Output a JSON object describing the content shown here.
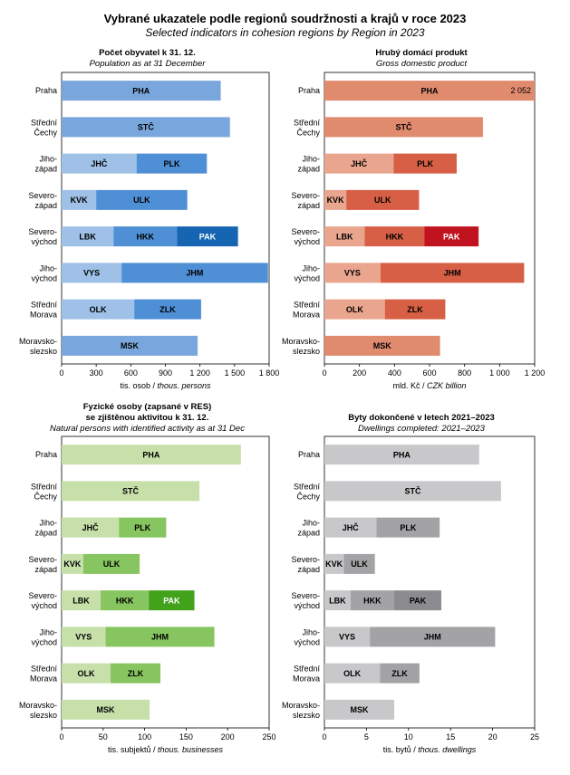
{
  "title": "Vybrané ukazatele podle regionů soudržnosti a krajů v roce 2023",
  "subtitle": "Selected indicators in cohesion regions by Region in 2023",
  "regions": [
    [
      "Praha"
    ],
    [
      "Střední",
      "Čechy"
    ],
    [
      "Jiho-",
      "západ"
    ],
    [
      "Severo-",
      "západ"
    ],
    [
      "Severo-",
      "východ"
    ],
    [
      "Jiho-",
      "východ"
    ],
    [
      "Střední",
      "Morava"
    ],
    [
      "Moravsko-",
      "slezsko"
    ]
  ],
  "chart_data": [
    {
      "type": "bar",
      "orientation": "horizontal",
      "stacked": true,
      "title": "Počet obyvatel k 31. 12.",
      "subtitle": "Population as at 31 December",
      "xlabel": "tis. osob",
      "xlabel_en": "thous. persons",
      "xlim": [
        0,
        1800
      ],
      "ticks": [
        "0",
        "300",
        "600",
        "900",
        "1 200",
        "1 500",
        "1 800"
      ],
      "tick_values": [
        0,
        300,
        600,
        900,
        1200,
        1500,
        1800
      ],
      "rows": [
        {
          "segments": [
            {
              "label": "PHA",
              "value": 1380,
              "color": "#79a6dc"
            }
          ]
        },
        {
          "segments": [
            {
              "label": "STČ",
              "value": 1460,
              "color": "#79a6dc"
            }
          ]
        },
        {
          "segments": [
            {
              "label": "JHČ",
              "value": 650,
              "color": "#9fc1e7"
            },
            {
              "label": "PLK",
              "value": 610,
              "color": "#4f8fd6"
            }
          ]
        },
        {
          "segments": [
            {
              "label": "KVK",
              "value": 300,
              "color": "#9fc1e7"
            },
            {
              "label": "ULK",
              "value": 790,
              "color": "#4f8fd6"
            }
          ]
        },
        {
          "segments": [
            {
              "label": "LBK",
              "value": 450,
              "color": "#9fc1e7"
            },
            {
              "label": "HKK",
              "value": 550,
              "color": "#4f8fd6"
            },
            {
              "label": "PAK",
              "value": 530,
              "color": "#1565b3"
            }
          ]
        },
        {
          "segments": [
            {
              "label": "VYS",
              "value": 520,
              "color": "#9fc1e7"
            },
            {
              "label": "JHM",
              "value": 1270,
              "color": "#4f8fd6"
            }
          ]
        },
        {
          "segments": [
            {
              "label": "OLK",
              "value": 630,
              "color": "#9fc1e7"
            },
            {
              "label": "ZLK",
              "value": 580,
              "color": "#4f8fd6"
            }
          ]
        },
        {
          "segments": [
            {
              "label": "MSK",
              "value": 1180,
              "color": "#79a6dc"
            }
          ]
        }
      ]
    },
    {
      "type": "bar",
      "orientation": "horizontal",
      "stacked": true,
      "title": "Hrubý domácí produkt",
      "subtitle": "Gross domestic product",
      "xlabel": "mld. Kč",
      "xlabel_en": "CZK billion",
      "xlim": [
        0,
        1200
      ],
      "ticks": [
        "0",
        "200",
        "400",
        "600",
        "800",
        "1 000",
        "1 200"
      ],
      "tick_values": [
        0,
        200,
        400,
        600,
        800,
        1000,
        1200
      ],
      "rows": [
        {
          "segments": [
            {
              "label": "PHA",
              "value": 2052,
              "color": "#e08a6e"
            }
          ],
          "value_label": "2 052"
        },
        {
          "segments": [
            {
              "label": "STČ",
              "value": 905,
              "color": "#e08a6e"
            }
          ]
        },
        {
          "segments": [
            {
              "label": "JHČ",
              "value": 395,
              "color": "#e9a58e"
            },
            {
              "label": "PLK",
              "value": 360,
              "color": "#d65f45"
            }
          ]
        },
        {
          "segments": [
            {
              "label": "KVK",
              "value": 125,
              "color": "#e9a58e"
            },
            {
              "label": "ULK",
              "value": 415,
              "color": "#d65f45"
            }
          ]
        },
        {
          "segments": [
            {
              "label": "LBK",
              "value": 230,
              "color": "#e9a58e"
            },
            {
              "label": "HKK",
              "value": 340,
              "color": "#d65f45"
            },
            {
              "label": "PAK",
              "value": 310,
              "color": "#c1121f"
            }
          ]
        },
        {
          "segments": [
            {
              "label": "VYS",
              "value": 320,
              "color": "#e9a58e"
            },
            {
              "label": "JHM",
              "value": 820,
              "color": "#d65f45"
            }
          ]
        },
        {
          "segments": [
            {
              "label": "OLK",
              "value": 345,
              "color": "#e9a58e"
            },
            {
              "label": "ZLK",
              "value": 345,
              "color": "#d65f45"
            }
          ]
        },
        {
          "segments": [
            {
              "label": "MSK",
              "value": 660,
              "color": "#e08a6e"
            }
          ]
        }
      ]
    },
    {
      "type": "bar",
      "orientation": "horizontal",
      "stacked": true,
      "title": "Fyzické osoby (zapsané v RES) se zjištěnou aktivitou k 31. 12.",
      "title_lines": [
        "Fyzické osoby (zapsané v RES)",
        "se zjištěnou aktivitou k 31. 12."
      ],
      "subtitle": "Natural persons with identified activity as at 31 Dec",
      "xlabel": "tis. subjektů",
      "xlabel_en": "thous. businesses",
      "xlim": [
        0,
        250
      ],
      "ticks": [
        "0",
        "50",
        "100",
        "150",
        "200",
        "250"
      ],
      "tick_values": [
        0,
        50,
        100,
        150,
        200,
        250
      ],
      "rows": [
        {
          "segments": [
            {
              "label": "PHA",
              "value": 216,
              "color": "#c7e0aa"
            }
          ]
        },
        {
          "segments": [
            {
              "label": "STČ",
              "value": 166,
              "color": "#c7e0aa"
            }
          ]
        },
        {
          "segments": [
            {
              "label": "JHČ",
              "value": 69,
              "color": "#c7e0aa"
            },
            {
              "label": "PLK",
              "value": 57,
              "color": "#86c55f"
            }
          ]
        },
        {
          "segments": [
            {
              "label": "KVK",
              "value": 26,
              "color": "#c7e0aa"
            },
            {
              "label": "ULK",
              "value": 68,
              "color": "#86c55f"
            }
          ]
        },
        {
          "segments": [
            {
              "label": "LBK",
              "value": 47,
              "color": "#c7e0aa"
            },
            {
              "label": "HKK",
              "value": 58,
              "color": "#86c55f"
            },
            {
              "label": "PAK",
              "value": 55,
              "color": "#43a21b"
            }
          ]
        },
        {
          "segments": [
            {
              "label": "VYS",
              "value": 53,
              "color": "#c7e0aa"
            },
            {
              "label": "JHM",
              "value": 131,
              "color": "#86c55f"
            }
          ]
        },
        {
          "segments": [
            {
              "label": "OLK",
              "value": 59,
              "color": "#c7e0aa"
            },
            {
              "label": "ZLK",
              "value": 60,
              "color": "#86c55f"
            }
          ]
        },
        {
          "segments": [
            {
              "label": "MSK",
              "value": 106,
              "color": "#c7e0aa"
            }
          ]
        }
      ]
    },
    {
      "type": "bar",
      "orientation": "horizontal",
      "stacked": true,
      "title": "Byty dokončené v letech 2021–2023",
      "subtitle": "Dwellings completed: 2021–2023",
      "xlabel": "tis. bytů",
      "xlabel_en": "thous. dwellings",
      "xlim": [
        0,
        25
      ],
      "ticks": [
        "0",
        "5",
        "10",
        "15",
        "20",
        "25"
      ],
      "tick_values": [
        0,
        5,
        10,
        15,
        20,
        25
      ],
      "rows": [
        {
          "segments": [
            {
              "label": "PHA",
              "value": 18.4,
              "color": "#c8c8ca"
            }
          ]
        },
        {
          "segments": [
            {
              "label": "STČ",
              "value": 21.0,
              "color": "#c8c8ca"
            }
          ]
        },
        {
          "segments": [
            {
              "label": "JHČ",
              "value": 6.2,
              "color": "#c8c8ca"
            },
            {
              "label": "PLK",
              "value": 7.5,
              "color": "#a3a3a6"
            }
          ]
        },
        {
          "segments": [
            {
              "label": "KVK",
              "value": 2.3,
              "color": "#c8c8ca"
            },
            {
              "label": "ULK",
              "value": 3.7,
              "color": "#a3a3a6"
            }
          ]
        },
        {
          "segments": [
            {
              "label": "LBK",
              "value": 3.1,
              "color": "#c8c8ca"
            },
            {
              "label": "HKK",
              "value": 5.2,
              "color": "#a3a3a6"
            },
            {
              "label": "PAK",
              "value": 5.6,
              "color": "#8c8c90"
            }
          ]
        },
        {
          "segments": [
            {
              "label": "VYS",
              "value": 5.4,
              "color": "#c8c8ca"
            },
            {
              "label": "JHM",
              "value": 14.9,
              "color": "#a3a3a6"
            }
          ]
        },
        {
          "segments": [
            {
              "label": "OLK",
              "value": 6.6,
              "color": "#c8c8ca"
            },
            {
              "label": "ZLK",
              "value": 4.7,
              "color": "#a3a3a6"
            }
          ]
        },
        {
          "segments": [
            {
              "label": "MSK",
              "value": 8.3,
              "color": "#c8c8ca"
            }
          ]
        }
      ]
    }
  ]
}
